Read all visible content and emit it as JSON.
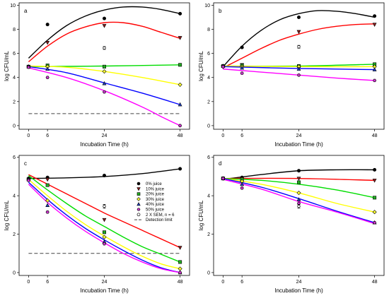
{
  "styles": {
    "0% juice": {
      "color": "#000000",
      "marker": "circle",
      "fill": "#000000"
    },
    "10% juice": {
      "color": "#ff0000",
      "marker": "triangle-down",
      "fill": "#8b1a1a"
    },
    "20% juice": {
      "color": "#00dd00",
      "marker": "square",
      "fill": "#22aa22"
    },
    "30% juice": {
      "color": "#ffff00",
      "marker": "diamond",
      "fill": "#ffff33"
    },
    "40% juice": {
      "color": "#0000ff",
      "marker": "triangle-up",
      "fill": "#1f3fbf"
    },
    "50% juice": {
      "color": "#ff00ff",
      "marker": "hexagon",
      "fill": "#cc33cc"
    },
    "2 X SEM, n = 6": {
      "marker": "sem",
      "color": "#000000"
    },
    "Detection limit": {
      "color": "#444444",
      "marker": "dash"
    }
  },
  "chart_data": [
    {
      "type": "scatter",
      "panel": "a",
      "xlabel": "Incubation Time (h)",
      "ylabel": "log CFU/mL",
      "x_ticks": [
        0,
        6,
        24,
        48
      ],
      "xlim": [
        -3,
        51
      ],
      "ylim": [
        -0.3,
        10.2
      ],
      "y_ticks": [
        0,
        2,
        4,
        6,
        8,
        10
      ],
      "detection_limit": 1,
      "sem_bar": {
        "x": 24,
        "y": 6.45,
        "half": 0.12
      },
      "series": [
        {
          "name": "0% juice",
          "x": [
            0,
            6,
            24,
            48
          ],
          "y": [
            4.9,
            8.4,
            8.9,
            9.3
          ],
          "curve": [
            [
              0,
              5.6
            ],
            [
              6,
              7.1
            ],
            [
              12,
              8.3
            ],
            [
              18,
              9.1
            ],
            [
              24,
              9.6
            ],
            [
              30,
              9.85
            ],
            [
              36,
              9.85
            ],
            [
              42,
              9.65
            ],
            [
              48,
              9.3
            ]
          ]
        },
        {
          "name": "10% juice",
          "x": [
            0,
            6,
            24,
            48
          ],
          "y": [
            4.9,
            6.9,
            8.3,
            7.3
          ],
          "curve": [
            [
              0,
              5.3
            ],
            [
              6,
              6.6
            ],
            [
              12,
              7.6
            ],
            [
              18,
              8.2
            ],
            [
              24,
              8.55
            ],
            [
              30,
              8.55
            ],
            [
              36,
              8.25
            ],
            [
              42,
              7.75
            ],
            [
              48,
              7.25
            ]
          ]
        },
        {
          "name": "20% juice",
          "x": [
            0,
            6,
            24,
            48
          ],
          "y": [
            4.9,
            5.0,
            4.9,
            5.05
          ],
          "curve": [
            [
              0,
              4.9
            ],
            [
              24,
              4.95
            ],
            [
              48,
              5.05
            ]
          ]
        },
        {
          "name": "30% juice",
          "x": [
            0,
            6,
            24,
            48
          ],
          "y": [
            4.9,
            4.9,
            4.5,
            3.4
          ],
          "curve": [
            [
              0,
              4.95
            ],
            [
              12,
              4.85
            ],
            [
              24,
              4.5
            ],
            [
              36,
              4.0
            ],
            [
              48,
              3.4
            ]
          ]
        },
        {
          "name": "40% juice",
          "x": [
            0,
            6,
            24,
            48
          ],
          "y": [
            4.9,
            4.7,
            3.5,
            1.75
          ],
          "curve": [
            [
              0,
              4.9
            ],
            [
              12,
              4.4
            ],
            [
              24,
              3.55
            ],
            [
              36,
              2.7
            ],
            [
              48,
              1.75
            ]
          ]
        },
        {
          "name": "50% juice",
          "x": [
            0,
            6,
            24,
            48
          ],
          "y": [
            4.85,
            4.0,
            2.8,
            0.0
          ],
          "curve": [
            [
              0,
              4.8
            ],
            [
              12,
              4.0
            ],
            [
              24,
              2.9
            ],
            [
              36,
              1.55
            ],
            [
              42,
              0.75
            ],
            [
              48,
              0.0
            ]
          ]
        }
      ]
    },
    {
      "type": "scatter",
      "panel": "b",
      "xlabel": "Incubation Time (h)",
      "ylabel": "log CFU/mL",
      "x_ticks": [
        0,
        6,
        24,
        48
      ],
      "xlim": [
        -3,
        51
      ],
      "ylim": [
        -0.3,
        10.2
      ],
      "y_ticks": [
        0,
        2,
        4,
        6,
        8,
        10
      ],
      "detection_limit": null,
      "sem_bar": {
        "x": 24,
        "y": 6.55,
        "half": 0.12
      },
      "series": [
        {
          "name": "0% juice",
          "x": [
            0,
            6,
            24,
            48
          ],
          "y": [
            4.9,
            6.5,
            9.0,
            9.1
          ],
          "curve": [
            [
              0,
              4.9
            ],
            [
              6,
              6.6
            ],
            [
              12,
              7.9
            ],
            [
              18,
              8.8
            ],
            [
              24,
              9.3
            ],
            [
              30,
              9.55
            ],
            [
              36,
              9.5
            ],
            [
              42,
              9.3
            ],
            [
              48,
              9.0
            ]
          ]
        },
        {
          "name": "10% juice",
          "x": [
            0,
            6,
            24,
            48
          ],
          "y": [
            4.9,
            5.05,
            7.8,
            8.4
          ],
          "curve": [
            [
              0,
              4.8
            ],
            [
              6,
              5.6
            ],
            [
              12,
              6.4
            ],
            [
              18,
              7.1
            ],
            [
              24,
              7.6
            ],
            [
              30,
              8.0
            ],
            [
              36,
              8.25
            ],
            [
              42,
              8.4
            ],
            [
              48,
              8.45
            ]
          ]
        },
        {
          "name": "20% juice",
          "x": [
            0,
            6,
            24,
            48
          ],
          "y": [
            4.95,
            5.0,
            4.95,
            5.1
          ],
          "curve": [
            [
              0,
              4.95
            ],
            [
              24,
              4.95
            ],
            [
              48,
              5.1
            ]
          ]
        },
        {
          "name": "30% juice",
          "x": [
            0,
            6,
            24,
            48
          ],
          "y": [
            4.95,
            4.9,
            4.9,
            4.9
          ],
          "curve": [
            [
              0,
              4.95
            ],
            [
              24,
              4.9
            ],
            [
              48,
              4.9
            ]
          ]
        },
        {
          "name": "40% juice",
          "x": [
            0,
            6,
            24,
            48
          ],
          "y": [
            4.95,
            4.8,
            4.7,
            4.65
          ],
          "curve": [
            [
              0,
              4.9
            ],
            [
              24,
              4.75
            ],
            [
              48,
              4.65
            ]
          ]
        },
        {
          "name": "50% juice",
          "x": [
            0,
            6,
            24,
            48
          ],
          "y": [
            4.9,
            4.35,
            4.2,
            3.75
          ],
          "curve": [
            [
              0,
              4.7
            ],
            [
              12,
              4.45
            ],
            [
              24,
              4.2
            ],
            [
              36,
              3.95
            ],
            [
              48,
              3.75
            ]
          ]
        }
      ]
    },
    {
      "type": "scatter",
      "panel": "c",
      "xlabel": "Incubation Time (h)",
      "ylabel": "log CFU/mL",
      "x_ticks": [
        0,
        6,
        24,
        48
      ],
      "xlim": [
        -3,
        51
      ],
      "ylim": [
        -0.15,
        6.1
      ],
      "y_ticks": [
        0,
        2,
        4,
        6
      ],
      "detection_limit": 1,
      "sem_bar": {
        "x": 24,
        "y": 3.45,
        "half": 0.1
      },
      "legend_position": "upper-right",
      "legend_entries": [
        "0% juice",
        "10% juice",
        "20% juice",
        "30% juice",
        "40% juice",
        "50% juice",
        "2 X SEM, n = 6",
        "Detection limit"
      ],
      "series": [
        {
          "name": "0% juice",
          "x": [
            0,
            6,
            24,
            48
          ],
          "y": [
            4.9,
            4.95,
            5.05,
            5.4
          ],
          "curve": [
            [
              0,
              4.9
            ],
            [
              12,
              4.93
            ],
            [
              24,
              5.0
            ],
            [
              36,
              5.15
            ],
            [
              48,
              5.4
            ]
          ]
        },
        {
          "name": "10% juice",
          "x": [
            0,
            6,
            24,
            48
          ],
          "y": [
            4.85,
            4.85,
            2.75,
            1.3
          ],
          "curve": [
            [
              0,
              5.1
            ],
            [
              6,
              4.6
            ],
            [
              12,
              4.1
            ],
            [
              18,
              3.6
            ],
            [
              24,
              3.1
            ],
            [
              30,
              2.65
            ],
            [
              36,
              2.2
            ],
            [
              42,
              1.75
            ],
            [
              48,
              1.3
            ]
          ]
        },
        {
          "name": "20% juice",
          "x": [
            0,
            6,
            24,
            48
          ],
          "y": [
            4.85,
            4.55,
            2.1,
            0.55
          ],
          "curve": [
            [
              0,
              5.05
            ],
            [
              6,
              4.3
            ],
            [
              12,
              3.6
            ],
            [
              18,
              2.95
            ],
            [
              24,
              2.4
            ],
            [
              30,
              1.85
            ],
            [
              36,
              1.35
            ],
            [
              42,
              0.95
            ],
            [
              48,
              0.55
            ]
          ]
        },
        {
          "name": "30% juice",
          "x": [
            0,
            6,
            24,
            48
          ],
          "y": [
            4.85,
            3.75,
            1.85,
            0.2
          ],
          "curve": [
            [
              0,
              4.85
            ],
            [
              6,
              4.0
            ],
            [
              12,
              3.2
            ],
            [
              18,
              2.5
            ],
            [
              24,
              1.9
            ],
            [
              30,
              1.35
            ],
            [
              36,
              0.85
            ],
            [
              42,
              0.45
            ],
            [
              48,
              0.2
            ]
          ]
        },
        {
          "name": "40% juice",
          "x": [
            0,
            6,
            24,
            48
          ],
          "y": [
            4.85,
            3.5,
            1.6,
            0.0
          ],
          "curve": [
            [
              0,
              4.7
            ],
            [
              6,
              3.8
            ],
            [
              12,
              3.0
            ],
            [
              18,
              2.3
            ],
            [
              24,
              1.7
            ],
            [
              30,
              1.15
            ],
            [
              36,
              0.65
            ],
            [
              42,
              0.25
            ],
            [
              48,
              0.0
            ]
          ]
        },
        {
          "name": "50% juice",
          "x": [
            0,
            6,
            24,
            48
          ],
          "y": [
            4.8,
            3.15,
            1.5,
            0.0
          ],
          "curve": [
            [
              0,
              4.6
            ],
            [
              6,
              3.65
            ],
            [
              12,
              2.85
            ],
            [
              18,
              2.15
            ],
            [
              24,
              1.55
            ],
            [
              30,
              1.0
            ],
            [
              36,
              0.55
            ],
            [
              42,
              0.2
            ],
            [
              48,
              0.0
            ]
          ]
        }
      ]
    },
    {
      "type": "scatter",
      "panel": "d",
      "xlabel": "Incubation Time (h)",
      "ylabel": "log CFU/mL",
      "x_ticks": [
        0,
        6,
        24,
        48
      ],
      "xlim": [
        -3,
        51
      ],
      "ylim": [
        -0.15,
        6.1
      ],
      "y_ticks": [
        0,
        2,
        4,
        6
      ],
      "detection_limit": null,
      "sem_bar": {
        "x": 24,
        "y": 3.45,
        "half": 0.1
      },
      "series": [
        {
          "name": "0% juice",
          "x": [
            0,
            6,
            24,
            48
          ],
          "y": [
            4.9,
            4.95,
            5.3,
            5.35
          ],
          "curve": [
            [
              0,
              4.85
            ],
            [
              12,
              5.1
            ],
            [
              24,
              5.3
            ],
            [
              36,
              5.35
            ],
            [
              48,
              5.35
            ]
          ]
        },
        {
          "name": "10% juice",
          "x": [
            0,
            6,
            24,
            48
          ],
          "y": [
            4.9,
            4.9,
            4.9,
            4.8
          ],
          "curve": [
            [
              0,
              4.9
            ],
            [
              24,
              4.9
            ],
            [
              48,
              4.8
            ]
          ]
        },
        {
          "name": "20% juice",
          "x": [
            0,
            6,
            24,
            48
          ],
          "y": [
            4.9,
            4.85,
            4.7,
            3.9
          ],
          "curve": [
            [
              0,
              4.9
            ],
            [
              12,
              4.8
            ],
            [
              24,
              4.6
            ],
            [
              36,
              4.3
            ],
            [
              48,
              3.9
            ]
          ]
        },
        {
          "name": "30% juice",
          "x": [
            0,
            6,
            24,
            48
          ],
          "y": [
            4.9,
            4.75,
            4.15,
            3.15
          ],
          "curve": [
            [
              0,
              4.9
            ],
            [
              12,
              4.6
            ],
            [
              24,
              4.15
            ],
            [
              36,
              3.6
            ],
            [
              48,
              3.15
            ]
          ]
        },
        {
          "name": "40% juice",
          "x": [
            0,
            6,
            24,
            48
          ],
          "y": [
            4.9,
            4.6,
            3.8,
            2.6
          ],
          "curve": [
            [
              0,
              4.9
            ],
            [
              12,
              4.45
            ],
            [
              24,
              3.85
            ],
            [
              36,
              3.2
            ],
            [
              48,
              2.6
            ]
          ]
        },
        {
          "name": "50% juice",
          "x": [
            0,
            6,
            24,
            48
          ],
          "y": [
            4.9,
            4.4,
            3.6,
            2.6
          ],
          "curve": [
            [
              0,
              4.85
            ],
            [
              12,
              4.35
            ],
            [
              24,
              3.7
            ],
            [
              36,
              3.15
            ],
            [
              48,
              2.55
            ]
          ]
        }
      ]
    }
  ]
}
